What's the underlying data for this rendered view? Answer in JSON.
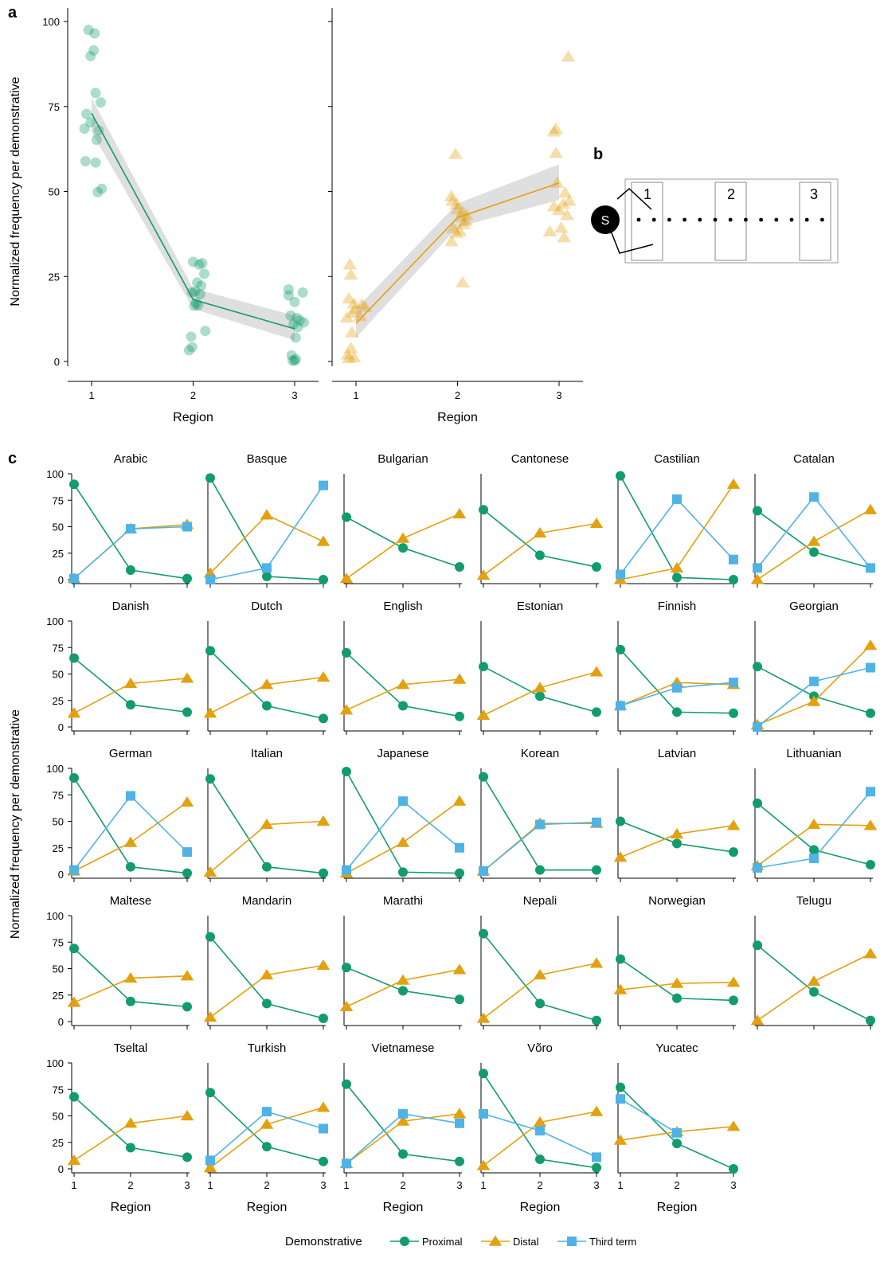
{
  "panel_letters": {
    "a": "a",
    "b": "b",
    "c": "c"
  },
  "colors": {
    "proximal": "#129c6c",
    "distal": "#e3a00f",
    "third": "#4fb3e6",
    "band": "#d9d9d9"
  },
  "legend": {
    "title": "Demonstrative",
    "items": [
      "Proximal",
      "Distal",
      "Third term"
    ],
    "icons": [
      "circle-marker",
      "triangle-marker",
      "square-marker"
    ]
  },
  "diagram_b": {
    "speaker_label": "S",
    "region_labels": [
      "1",
      "2",
      "3"
    ]
  },
  "chart_data": [
    {
      "id": "a-left",
      "type": "scatter",
      "xlabel": "Region",
      "ylabel": "Normalized frequency per demonstrative",
      "xticks": [
        "1",
        "2",
        "3"
      ],
      "yticks": [
        0,
        25,
        50,
        75,
        100
      ],
      "ylim": [
        0,
        100
      ],
      "series": [
        {
          "marker": "circle",
          "color": "proximal",
          "points": [
            [
              0.97,
              97.5
            ],
            [
              1.03,
              96.5
            ],
            [
              0.99,
              89.8
            ],
            [
              1.02,
              91.5
            ],
            [
              1.04,
              79
            ],
            [
              1.09,
              76.2
            ],
            [
              0.95,
              72.8
            ],
            [
              1.07,
              68
            ],
            [
              0.93,
              68.5
            ],
            [
              0.99,
              70.3
            ],
            [
              1.05,
              65.2
            ],
            [
              0.94,
              58.9
            ],
            [
              1.04,
              58.5
            ],
            [
              1.06,
              49.8
            ],
            [
              1.1,
              50.8
            ],
            [
              2.0,
              29.3
            ],
            [
              2.06,
              28.5
            ],
            [
              2.09,
              28.9
            ],
            [
              2.11,
              25.8
            ],
            [
              2.04,
              23.2
            ],
            [
              2.08,
              22.3
            ],
            [
              2.02,
              20.6
            ],
            [
              1.99,
              20.3
            ],
            [
              2.07,
              19.8
            ],
            [
              2.03,
              17.2
            ],
            [
              2.01,
              16.4
            ],
            [
              2.05,
              16.5
            ],
            [
              2.12,
              9.0
            ],
            [
              1.98,
              7.3
            ],
            [
              1.99,
              4.2
            ],
            [
              1.96,
              3.3
            ],
            [
              2.94,
              21.2
            ],
            [
              3.08,
              20.3
            ],
            [
              2.94,
              19.4
            ],
            [
              3.0,
              17.5
            ],
            [
              2.96,
              13.5
            ],
            [
              3.02,
              12.8
            ],
            [
              3.05,
              12.1
            ],
            [
              3.09,
              11.5
            ],
            [
              2.99,
              11.0
            ],
            [
              3.03,
              10.1
            ],
            [
              3.01,
              7.0
            ],
            [
              2.97,
              1.8
            ],
            [
              3.01,
              0.7
            ],
            [
              2.98,
              0.3
            ],
            [
              3.0,
              0.2
            ]
          ],
          "fit": [
            [
              1,
              73
            ],
            [
              2,
              18.2
            ],
            [
              3,
              9.6
            ]
          ],
          "band_low": [
            67.5,
            15.5,
            6.2
          ],
          "band_high": [
            77.5,
            21.5,
            13.5
          ]
        }
      ]
    },
    {
      "id": "a-right",
      "type": "scatter",
      "xlabel": "Region",
      "xticks": [
        "1",
        "2",
        "3"
      ],
      "ylim": [
        0,
        100
      ],
      "series": [
        {
          "marker": "triangle",
          "color": "distal",
          "points": [
            [
              0.94,
              28.5
            ],
            [
              0.95,
              25.5
            ],
            [
              0.93,
              18.5
            ],
            [
              0.98,
              17.0
            ],
            [
              1.06,
              16.8
            ],
            [
              1.09,
              16.0
            ],
            [
              0.99,
              15.4
            ],
            [
              0.97,
              14.3
            ],
            [
              0.91,
              12.9
            ],
            [
              1.04,
              13.3
            ],
            [
              0.96,
              8.5
            ],
            [
              0.95,
              3.9
            ],
            [
              0.92,
              2.0
            ],
            [
              0.98,
              1.2
            ],
            [
              0.93,
              1.0
            ],
            [
              1.98,
              61.0
            ],
            [
              1.94,
              48.6
            ],
            [
              1.95,
              47.2
            ],
            [
              1.99,
              46.2
            ],
            [
              2.0,
              44.8
            ],
            [
              2.05,
              44.0
            ],
            [
              2.09,
              43.0
            ],
            [
              2.03,
              42.5
            ],
            [
              2.08,
              41.3
            ],
            [
              2.06,
              40.4
            ],
            [
              1.96,
              39.2
            ],
            [
              2.02,
              38.4
            ],
            [
              1.99,
              37.8
            ],
            [
              1.94,
              35.3
            ],
            [
              2.05,
              23.2
            ],
            [
              2.97,
              68.4
            ],
            [
              2.95,
              67.6
            ],
            [
              2.97,
              61.3
            ],
            [
              3.09,
              89.6
            ],
            [
              2.98,
              52.5
            ],
            [
              3.06,
              49.6
            ],
            [
              3.1,
              47.2
            ],
            [
              3.04,
              46.3
            ],
            [
              2.95,
              45.6
            ],
            [
              3.0,
              44.5
            ],
            [
              3.08,
              43.0
            ],
            [
              3.02,
              39.3
            ],
            [
              2.91,
              38.2
            ],
            [
              3.05,
              36.5
            ]
          ],
          "fit": [
            [
              1,
              11.2
            ],
            [
              2,
              42.3
            ],
            [
              3,
              52.5
            ]
          ],
          "band_low": [
            7,
            39.5,
            47.5
          ],
          "band_high": [
            15.5,
            46.5,
            58
          ]
        }
      ]
    }
  ],
  "grid_panels": {
    "type": "line",
    "xlabel": "Region",
    "ylabel": "Normalized frequency per demonstrative",
    "xticks": [
      "1",
      "2",
      "3"
    ],
    "yticks": [
      "0",
      "25",
      "50",
      "75",
      "100"
    ],
    "ylim": [
      0,
      100
    ],
    "languages": [
      {
        "name": "Arabic",
        "proximal": [
          90,
          9,
          1
        ],
        "distal": [
          1,
          48,
          52
        ],
        "third": [
          1,
          48,
          50
        ]
      },
      {
        "name": "Basque",
        "proximal": [
          96,
          3,
          0
        ],
        "distal": [
          6,
          61,
          36
        ],
        "third": [
          0,
          11,
          89
        ]
      },
      {
        "name": "Bulgarian",
        "proximal": [
          59,
          30,
          12
        ],
        "distal": [
          1,
          39,
          62
        ]
      },
      {
        "name": "Cantonese",
        "proximal": [
          66,
          23,
          12
        ],
        "distal": [
          4,
          44,
          53
        ]
      },
      {
        "name": "Castilian",
        "proximal": [
          98,
          2,
          0
        ],
        "distal": [
          0,
          11,
          90
        ],
        "third": [
          5,
          76,
          19
        ]
      },
      {
        "name": "Catalan",
        "proximal": [
          65,
          26,
          11
        ],
        "distal": [
          0,
          36,
          66
        ],
        "third": [
          11,
          78,
          11
        ]
      },
      {
        "name": "Danish",
        "proximal": [
          65,
          21,
          14
        ],
        "distal": [
          13,
          41,
          46
        ]
      },
      {
        "name": "Dutch",
        "proximal": [
          72,
          20,
          8
        ],
        "distal": [
          13,
          40,
          47
        ]
      },
      {
        "name": "English",
        "proximal": [
          70,
          20,
          10
        ],
        "distal": [
          16,
          40,
          45
        ]
      },
      {
        "name": "Estonian",
        "proximal": [
          57,
          29,
          14
        ],
        "distal": [
          11,
          37,
          52
        ]
      },
      {
        "name": "Finnish",
        "proximal": [
          73,
          14,
          13
        ],
        "distal": [
          20,
          42,
          40
        ],
        "third": [
          20,
          37,
          42
        ]
      },
      {
        "name": "Georgian",
        "proximal": [
          57,
          29,
          13
        ],
        "distal": [
          2,
          24,
          77
        ],
        "third": [
          0,
          43,
          56
        ]
      },
      {
        "name": "German",
        "proximal": [
          91,
          7,
          1
        ],
        "distal": [
          3,
          30,
          68
        ],
        "third": [
          4,
          74,
          21
        ]
      },
      {
        "name": "Italian",
        "proximal": [
          90,
          7,
          1
        ],
        "distal": [
          2,
          47,
          50
        ]
      },
      {
        "name": "Japanese",
        "proximal": [
          97,
          2,
          1
        ],
        "distal": [
          1,
          30,
          69
        ],
        "third": [
          4,
          69,
          25
        ]
      },
      {
        "name": "Korean",
        "proximal": [
          92,
          4,
          4
        ],
        "distal": [
          3,
          48,
          48
        ],
        "third": [
          3,
          47,
          49
        ]
      },
      {
        "name": "Latvian",
        "proximal": [
          50,
          29,
          21
        ],
        "distal": [
          16,
          38,
          46
        ]
      },
      {
        "name": "Lithuanian",
        "proximal": [
          67,
          23,
          9
        ],
        "distal": [
          8,
          47,
          46
        ],
        "third": [
          6,
          15,
          78
        ]
      },
      {
        "name": "Maltese",
        "proximal": [
          69,
          19,
          14
        ],
        "distal": [
          18,
          41,
          43
        ]
      },
      {
        "name": "Mandarin",
        "proximal": [
          80,
          17,
          3
        ],
        "distal": [
          4,
          44,
          53
        ]
      },
      {
        "name": "Marathi",
        "proximal": [
          51,
          29,
          21
        ],
        "distal": [
          14,
          39,
          49
        ]
      },
      {
        "name": "Nepali",
        "proximal": [
          83,
          17,
          1
        ],
        "distal": [
          3,
          44,
          55
        ]
      },
      {
        "name": "Norwegian",
        "proximal": [
          59,
          22,
          20
        ],
        "distal": [
          30,
          36,
          37
        ]
      },
      {
        "name": "Telugu",
        "proximal": [
          72,
          28,
          1
        ],
        "distal": [
          1,
          38,
          64
        ]
      },
      {
        "name": "Tseltal",
        "proximal": [
          68,
          20,
          11
        ],
        "distal": [
          8,
          43,
          50
        ]
      },
      {
        "name": "Turkish",
        "proximal": [
          72,
          21,
          7
        ],
        "distal": [
          1,
          42,
          58
        ],
        "third": [
          8,
          54,
          38
        ]
      },
      {
        "name": "Vietnamese",
        "proximal": [
          80,
          14,
          7
        ],
        "distal": [
          5,
          45,
          52
        ],
        "third": [
          5,
          52,
          43
        ]
      },
      {
        "name": "Võro",
        "proximal": [
          90,
          9,
          1
        ],
        "distal": [
          3,
          44,
          54
        ],
        "third": [
          52,
          36,
          11
        ]
      },
      {
        "name": "Yucatec",
        "proximal": [
          77,
          24,
          0
        ],
        "distal": [
          27,
          35,
          40
        ],
        "third": [
          66,
          34,
          null
        ]
      }
    ]
  }
}
